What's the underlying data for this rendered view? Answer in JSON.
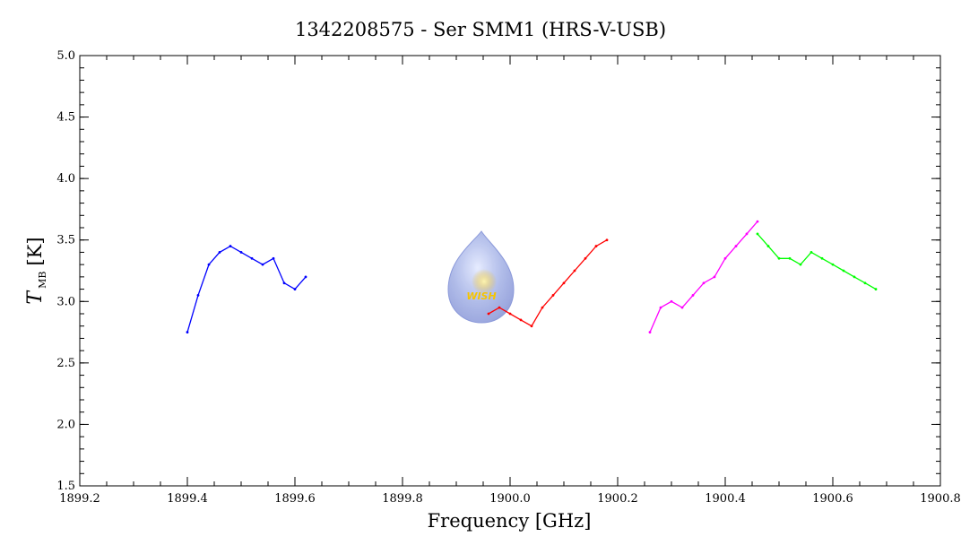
{
  "chart_data": {
    "type": "line",
    "title": "1342208575 - Ser SMM1 (HRS-V-USB)",
    "xlabel": "Frequency [GHz]",
    "ylabel": {
      "symbol": "T",
      "subscript": "MB",
      "unit": "[K]"
    },
    "xlim": [
      1899.2,
      1900.8
    ],
    "ylim": [
      1.5,
      5.0
    ],
    "x_ticks": [
      "1899.2",
      "1899.4",
      "1899.6",
      "1899.8",
      "1900.0",
      "1900.2",
      "1900.4",
      "1900.6",
      "1900.8"
    ],
    "y_ticks": [
      "1.5",
      "2.0",
      "2.5",
      "3.0",
      "3.5",
      "4.0",
      "4.5",
      "5.0"
    ],
    "grid": false,
    "series": [
      {
        "color": "#0000ff",
        "x": [
          1899.4,
          1899.42,
          1899.44,
          1899.46,
          1899.48,
          1899.5,
          1899.52,
          1899.54,
          1899.56,
          1899.58,
          1899.6,
          1899.62
        ],
        "y": [
          2.75,
          3.05,
          3.3,
          3.4,
          3.45,
          3.4,
          3.35,
          3.3,
          3.35,
          3.15,
          3.1,
          3.2
        ]
      },
      {
        "color": "#ff0000",
        "x": [
          1899.96,
          1899.98,
          1900.0,
          1900.02,
          1900.04,
          1900.06,
          1900.08,
          1900.1,
          1900.12,
          1900.14,
          1900.16,
          1900.18
        ],
        "y": [
          2.9,
          2.95,
          2.9,
          2.85,
          2.8,
          2.95,
          3.05,
          3.15,
          3.25,
          3.35,
          3.45,
          3.5
        ]
      },
      {
        "color": "#ff00ff",
        "x": [
          1900.26,
          1900.28,
          1900.3,
          1900.32,
          1900.34,
          1900.36,
          1900.38,
          1900.4,
          1900.42,
          1900.44,
          1900.46
        ],
        "y": [
          2.75,
          2.95,
          3.0,
          2.95,
          3.05,
          3.15,
          3.2,
          3.35,
          3.45,
          3.55,
          3.65
        ]
      },
      {
        "color": "#00ff00",
        "x": [
          1900.46,
          1900.48,
          1900.5,
          1900.52,
          1900.54,
          1900.56,
          1900.58,
          1900.6,
          1900.62,
          1900.64,
          1900.66,
          1900.68
        ],
        "y": [
          3.55,
          3.45,
          3.35,
          3.35,
          3.3,
          3.4,
          3.35,
          3.3,
          3.25,
          3.2,
          3.15,
          3.1
        ]
      }
    ]
  },
  "logo": {
    "text": "WISH"
  }
}
